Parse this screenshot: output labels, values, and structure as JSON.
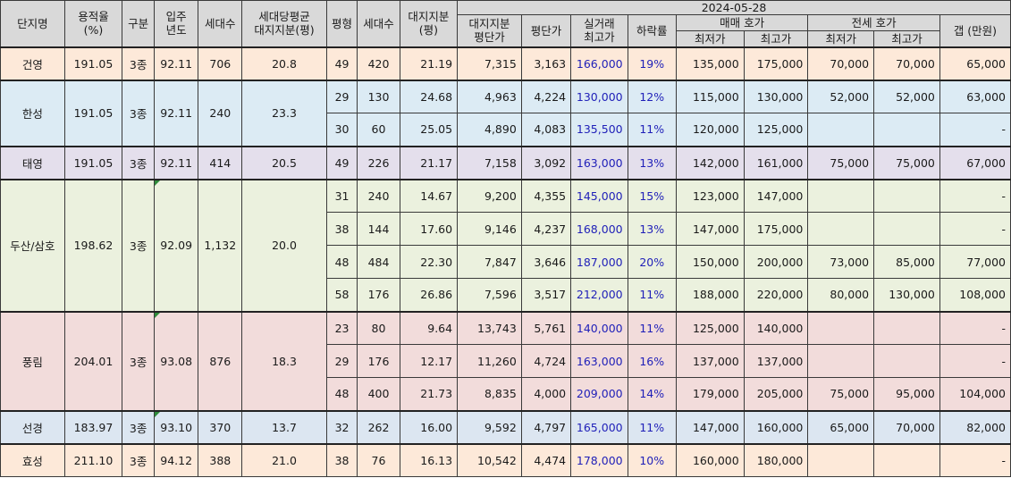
{
  "date": "2024-05-28",
  "headers": {
    "complex": "단지명",
    "far": "용적율",
    "far_unit": "(%)",
    "zone": "구분",
    "year_1": "입주",
    "year_2": "년도",
    "households": "세대수",
    "avg_land_1": "세대당평균",
    "avg_land_2": "대지지분(평)",
    "size": "평형",
    "unit_households": "세대수",
    "land_share_1": "대지지분",
    "land_share_2": "(평)",
    "land_price_1": "대지지분",
    "land_price_2": "평단가",
    "pyeong_price": "평단가",
    "actual_1": "실거래",
    "actual_2": "최고가",
    "drop_rate": "하락률",
    "sale_group": "매매 호가",
    "sale_min": "최저가",
    "sale_max": "최고가",
    "jeonse_group": "전세 호가",
    "jeonse_min": "최저가",
    "jeonse_max": "최고가",
    "gap": "갭 (만원)"
  },
  "colors": {
    "header": "#d9d9d9",
    "peach": "#fde9d9",
    "blue": "#dcebf4",
    "lavender": "#e4dfec",
    "green": "#ebf1de",
    "pink": "#f2dcdb",
    "bluegray": "#dce6f1",
    "price_text": "#1f1fb8"
  },
  "complexes": [
    {
      "name": "건영",
      "far": "191.05",
      "zone": "3종",
      "year": "92.11",
      "households": "706",
      "avg_land": "20.8",
      "color": "peach",
      "marker": false,
      "units": [
        {
          "size": "49",
          "hh": "420",
          "land": "21.19",
          "land_price": "7,315",
          "pyeong_price": "3,163",
          "actual_max": "166,000",
          "drop": "19%",
          "sale_min": "135,000",
          "sale_max": "175,000",
          "jeonse_min": "70,000",
          "jeonse_max": "70,000",
          "gap": "65,000"
        }
      ]
    },
    {
      "name": "한성",
      "far": "191.05",
      "zone": "3종",
      "year": "92.11",
      "households": "240",
      "avg_land": "23.3",
      "color": "blue",
      "marker": false,
      "units": [
        {
          "size": "29",
          "hh": "130",
          "land": "24.68",
          "land_price": "4,963",
          "pyeong_price": "4,224",
          "actual_max": "130,000",
          "drop": "12%",
          "sale_min": "115,000",
          "sale_max": "130,000",
          "jeonse_min": "52,000",
          "jeonse_max": "52,000",
          "gap": "63,000"
        },
        {
          "size": "30",
          "hh": "60",
          "land": "25.05",
          "land_price": "4,890",
          "pyeong_price": "4,083",
          "actual_max": "135,500",
          "drop": "11%",
          "sale_min": "120,000",
          "sale_max": "125,000",
          "jeonse_min": "",
          "jeonse_max": "",
          "gap": "-"
        }
      ]
    },
    {
      "name": "태영",
      "far": "191.05",
      "zone": "3종",
      "year": "92.11",
      "households": "414",
      "avg_land": "20.5",
      "color": "lavender",
      "marker": false,
      "units": [
        {
          "size": "49",
          "hh": "226",
          "land": "21.17",
          "land_price": "7,158",
          "pyeong_price": "3,092",
          "actual_max": "163,000",
          "drop": "13%",
          "sale_min": "142,000",
          "sale_max": "161,000",
          "jeonse_min": "75,000",
          "jeonse_max": "75,000",
          "gap": "67,000"
        }
      ]
    },
    {
      "name": "두산/삼호",
      "far": "198.62",
      "zone": "3종",
      "year": "92.09",
      "households": "1,132",
      "avg_land": "20.0",
      "color": "green",
      "marker": true,
      "units": [
        {
          "size": "31",
          "hh": "240",
          "land": "14.67",
          "land_price": "9,200",
          "pyeong_price": "4,355",
          "actual_max": "145,000",
          "drop": "15%",
          "sale_min": "123,000",
          "sale_max": "147,000",
          "jeonse_min": "",
          "jeonse_max": "",
          "gap": "-"
        },
        {
          "size": "38",
          "hh": "144",
          "land": "17.60",
          "land_price": "9,146",
          "pyeong_price": "4,237",
          "actual_max": "168,000",
          "drop": "13%",
          "sale_min": "147,000",
          "sale_max": "175,000",
          "jeonse_min": "",
          "jeonse_max": "",
          "gap": "-"
        },
        {
          "size": "48",
          "hh": "484",
          "land": "22.30",
          "land_price": "7,847",
          "pyeong_price": "3,646",
          "actual_max": "187,000",
          "drop": "20%",
          "sale_min": "150,000",
          "sale_max": "200,000",
          "jeonse_min": "73,000",
          "jeonse_max": "85,000",
          "gap": "77,000"
        },
        {
          "size": "58",
          "hh": "176",
          "land": "26.86",
          "land_price": "7,596",
          "pyeong_price": "3,517",
          "actual_max": "212,000",
          "drop": "11%",
          "sale_min": "188,000",
          "sale_max": "220,000",
          "jeonse_min": "80,000",
          "jeonse_max": "130,000",
          "gap": "108,000"
        }
      ]
    },
    {
      "name": "풍림",
      "far": "204.01",
      "zone": "3종",
      "year": "93.08",
      "households": "876",
      "avg_land": "18.3",
      "color": "pink",
      "marker": true,
      "units": [
        {
          "size": "23",
          "hh": "80",
          "land": "9.64",
          "land_price": "13,743",
          "pyeong_price": "5,761",
          "actual_max": "140,000",
          "drop": "11%",
          "sale_min": "125,000",
          "sale_max": "140,000",
          "jeonse_min": "",
          "jeonse_max": "",
          "gap": "-"
        },
        {
          "size": "29",
          "hh": "176",
          "land": "12.17",
          "land_price": "11,260",
          "pyeong_price": "4,724",
          "actual_max": "163,000",
          "drop": "16%",
          "sale_min": "137,000",
          "sale_max": "137,000",
          "jeonse_min": "",
          "jeonse_max": "",
          "gap": "-"
        },
        {
          "size": "48",
          "hh": "400",
          "land": "21.73",
          "land_price": "8,835",
          "pyeong_price": "4,000",
          "actual_max": "209,000",
          "drop": "14%",
          "sale_min": "179,000",
          "sale_max": "205,000",
          "jeonse_min": "75,000",
          "jeonse_max": "95,000",
          "gap": "104,000"
        }
      ]
    },
    {
      "name": "선경",
      "far": "183.97",
      "zone": "3종",
      "year": "93.10",
      "households": "370",
      "avg_land": "13.7",
      "color": "bluegray",
      "marker": true,
      "units": [
        {
          "size": "32",
          "hh": "262",
          "land": "16.00",
          "land_price": "9,592",
          "pyeong_price": "4,797",
          "actual_max": "165,000",
          "drop": "11%",
          "sale_min": "147,000",
          "sale_max": "160,000",
          "jeonse_min": "65,000",
          "jeonse_max": "70,000",
          "gap": "82,000"
        }
      ]
    },
    {
      "name": "효성",
      "far": "211.10",
      "zone": "3종",
      "year": "94.12",
      "households": "388",
      "avg_land": "21.0",
      "color": "peach",
      "marker": false,
      "units": [
        {
          "size": "38",
          "hh": "76",
          "land": "16.13",
          "land_price": "10,542",
          "pyeong_price": "4,474",
          "actual_max": "178,000",
          "drop": "10%",
          "sale_min": "160,000",
          "sale_max": "180,000",
          "jeonse_min": "",
          "jeonse_max": "",
          "gap": "-"
        }
      ]
    }
  ]
}
